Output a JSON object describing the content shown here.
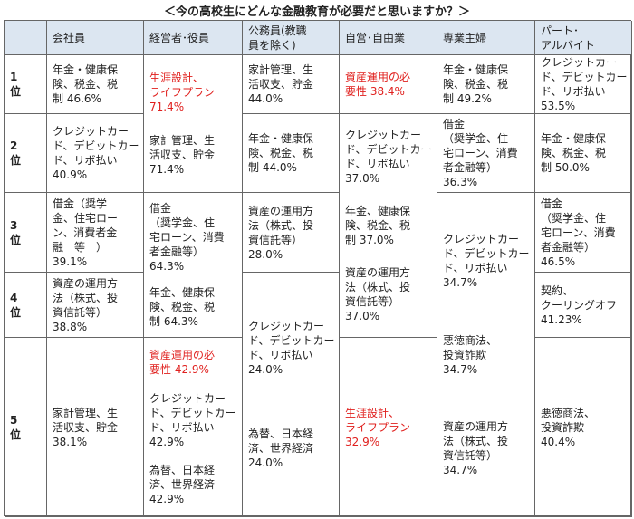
{
  "title": "＜今の高校生にどんな金融教育が必要だと思いますか？＞",
  "colors": {
    "header_bg": "#dce6f1",
    "highlight": "#e0201e"
  },
  "ranks": [
    "1\n位",
    "2\n位",
    "3\n位",
    "4\n位",
    "5\n位"
  ],
  "columns": [
    {
      "header": "会社員",
      "cells": [
        {
          "rows": [
            1,
            1
          ],
          "items": [
            {
              "text": "年金・健康保\n険、税金、税\n制 46.6%"
            }
          ]
        },
        {
          "rows": [
            2,
            2
          ],
          "items": [
            {
              "text": "クレジットカー\nド、デビットカー\nド、リボ払い\n40.9%"
            }
          ]
        },
        {
          "rows": [
            3,
            3
          ],
          "items": [
            {
              "text": "借金（奨学\n金、住宅ロー\nン、消費者金\n融　等　）\n39.1%"
            }
          ]
        },
        {
          "rows": [
            4,
            4
          ],
          "items": [
            {
              "text": "資産の運用方\n法（株式、投\n資信託等）\n38.8%"
            }
          ]
        },
        {
          "rows": [
            5,
            5
          ],
          "items": [
            {
              "text": "家計管理、生\n活収支、貯金\n38.1%"
            }
          ]
        }
      ]
    },
    {
      "header": "経営者･役員",
      "cells": [
        {
          "rows": [
            1,
            2
          ],
          "items": [
            {
              "text": "生涯設計、\nライフプラン\n71.4%",
              "red": true
            },
            {
              "text": "家計管理、生\n活収支、貯金\n71.4%"
            }
          ]
        },
        {
          "rows": [
            3,
            4
          ],
          "items": [
            {
              "text": "借金\n（奨学金、住\n宅ローン、消費\n者金融等）\n64.3%"
            },
            {
              "text": "年金、健康保\n険、税金、税\n制 64.3%"
            }
          ]
        },
        {
          "rows": [
            5,
            5
          ],
          "items": [
            {
              "text": "資産運用の必\n要性 42.9%",
              "red": true
            },
            {
              "text": "クレジットカー\nド、デビットカー\nド、リボ払い\n42.9%"
            },
            {
              "text": "為替、日本経\n済、世界経済\n42.9%"
            }
          ]
        }
      ]
    },
    {
      "header": "公務員(教職\n員を除く)",
      "cells": [
        {
          "rows": [
            1,
            1
          ],
          "items": [
            {
              "text": "家計管理、生\n活収支、貯金\n44.0%"
            }
          ]
        },
        {
          "rows": [
            2,
            2
          ],
          "items": [
            {
              "text": "年金・健康保\n険、税金、税\n制 44.0%"
            }
          ]
        },
        {
          "rows": [
            3,
            3
          ],
          "items": [
            {
              "text": "資産の運用方\n法（株式、投\n資信託等）\n28.0%"
            }
          ]
        },
        {
          "rows": [
            4,
            5
          ],
          "items": [
            {
              "text": "クレジットカー\nド、デビットカー\nド、リボ払い\n24.0%"
            },
            {
              "text": "為替、日本経\n済、世界経済\n24.0%"
            }
          ]
        }
      ]
    },
    {
      "header": "自営･自由業",
      "cells": [
        {
          "rows": [
            1,
            1
          ],
          "items": [
            {
              "text": "資産運用の必\n要性 38.4%",
              "red": true
            }
          ]
        },
        {
          "rows": [
            2,
            4
          ],
          "items": [
            {
              "text": "クレジットカー\nド、デビットカー\nド、リボ払い\n37.0%"
            },
            {
              "text": "年金、健康保\n険、税金、税\n制 37.0%"
            },
            {
              "text": "資産の運用方\n法（株式、投\n資信託等）\n37.0%"
            }
          ]
        },
        {
          "rows": [
            5,
            5
          ],
          "items": [
            {
              "text": "生涯設計、\nライフプラン\n32.9%",
              "red": true
            }
          ]
        }
      ]
    },
    {
      "header": "専業主婦",
      "cells": [
        {
          "rows": [
            1,
            1
          ],
          "items": [
            {
              "text": "年金・健康保\n険、税金、税\n制 49.2%"
            }
          ]
        },
        {
          "rows": [
            2,
            2
          ],
          "items": [
            {
              "text": "借金\n（奨学金、住\n宅ローン、消費\n者金融等）\n36.3%"
            }
          ]
        },
        {
          "rows": [
            3,
            5
          ],
          "items": [
            {
              "text": "クレジットカー\nド、デビットカー\nド、リボ払い\n34.7%"
            },
            {
              "text": "悪徳商法、\n投資詐欺\n34.7%"
            },
            {
              "text": "資産の運用方\n法（株式、投\n資信託等）\n34.7%"
            }
          ]
        }
      ]
    },
    {
      "header": "パート･\nアルバイト",
      "cells": [
        {
          "rows": [
            1,
            1
          ],
          "items": [
            {
              "text": "クレジットカー\nド、デビットカー\nド、リボ払い\n53.5%"
            }
          ]
        },
        {
          "rows": [
            2,
            2
          ],
          "items": [
            {
              "text": "年金・健康保\n険、税金、税\n制 50.0%"
            }
          ]
        },
        {
          "rows": [
            3,
            3
          ],
          "items": [
            {
              "text": "借金\n（奨学金、住\n宅ローン、消費\n者金融等）\n46.5%"
            }
          ]
        },
        {
          "rows": [
            4,
            4
          ],
          "items": [
            {
              "text": "契約、\nクーリングオフ\n41.23%"
            }
          ]
        },
        {
          "rows": [
            5,
            5
          ],
          "items": [
            {
              "text": "悪徳商法、\n投資詐欺\n40.4%"
            }
          ]
        }
      ]
    }
  ]
}
